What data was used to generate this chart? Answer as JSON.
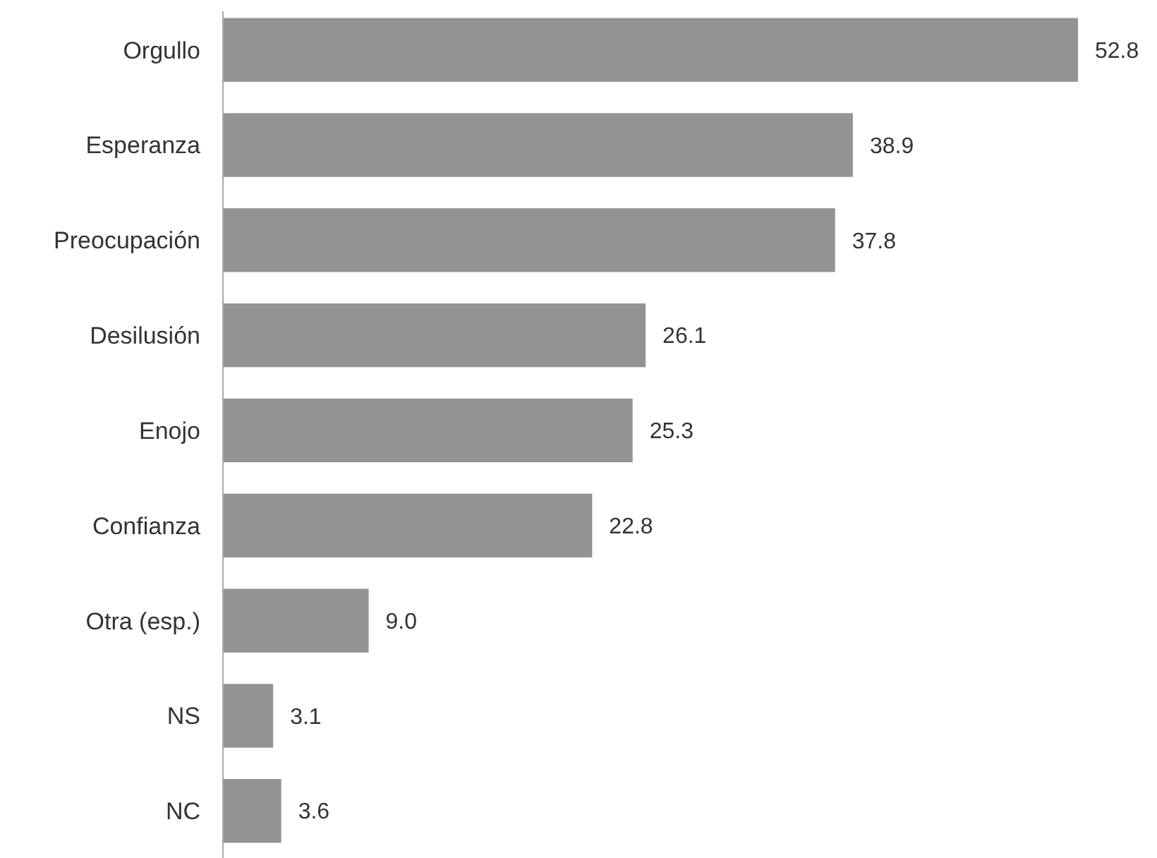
{
  "chart_data": {
    "type": "bar",
    "orientation": "horizontal",
    "categories": [
      "Orgullo",
      "Esperanza",
      "Preocupación",
      "Desilusión",
      "Enojo",
      "Confianza",
      "Otra (esp.)",
      "NS",
      "NC"
    ],
    "values": [
      52.8,
      38.9,
      37.8,
      26.1,
      25.3,
      22.8,
      9.0,
      3.1,
      3.6
    ],
    "value_labels": [
      "52.8",
      "38.9",
      "37.8",
      "26.1",
      "25.3",
      "22.8",
      "9.0",
      "3.1",
      "3.6"
    ],
    "color": "#939393"
  }
}
